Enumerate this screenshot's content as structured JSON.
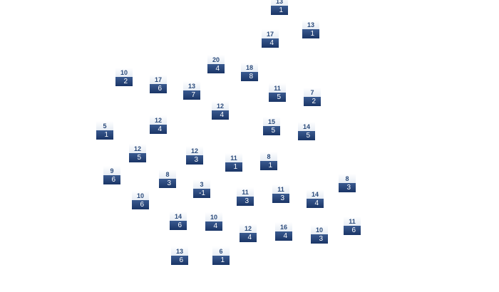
{
  "tiles": [
    {
      "top": 13,
      "bottom": 1
    },
    {
      "top": 13,
      "bottom": 1
    },
    {
      "top": 17,
      "bottom": 4
    },
    {
      "top": 20,
      "bottom": 4
    },
    {
      "top": 18,
      "bottom": 8
    },
    {
      "top": 10,
      "bottom": 2
    },
    {
      "top": 17,
      "bottom": 6
    },
    {
      "top": 13,
      "bottom": 7
    },
    {
      "top": 11,
      "bottom": 5
    },
    {
      "top": 7,
      "bottom": 2
    },
    {
      "top": 12,
      "bottom": 4
    },
    {
      "top": 12,
      "bottom": 4
    },
    {
      "top": 15,
      "bottom": 5
    },
    {
      "top": 5,
      "bottom": 1
    },
    {
      "top": 14,
      "bottom": 5
    },
    {
      "top": 12,
      "bottom": 5
    },
    {
      "top": 12,
      "bottom": 3
    },
    {
      "top": 11,
      "bottom": 1
    },
    {
      "top": 8,
      "bottom": 1
    },
    {
      "top": 9,
      "bottom": 6
    },
    {
      "top": 8,
      "bottom": 3
    },
    {
      "top": 8,
      "bottom": 3
    },
    {
      "top": 3,
      "bottom": -1
    },
    {
      "top": 11,
      "bottom": 3
    },
    {
      "top": 11,
      "bottom": 3
    },
    {
      "top": 10,
      "bottom": 6
    },
    {
      "top": 14,
      "bottom": 4
    },
    {
      "top": 14,
      "bottom": 6
    },
    {
      "top": 10,
      "bottom": 4
    },
    {
      "top": 11,
      "bottom": 6
    },
    {
      "top": 12,
      "bottom": 4
    },
    {
      "top": 16,
      "bottom": 4
    },
    {
      "top": 10,
      "bottom": 3
    },
    {
      "top": 13,
      "bottom": 6
    },
    {
      "top": 6,
      "bottom": 1
    }
  ]
}
